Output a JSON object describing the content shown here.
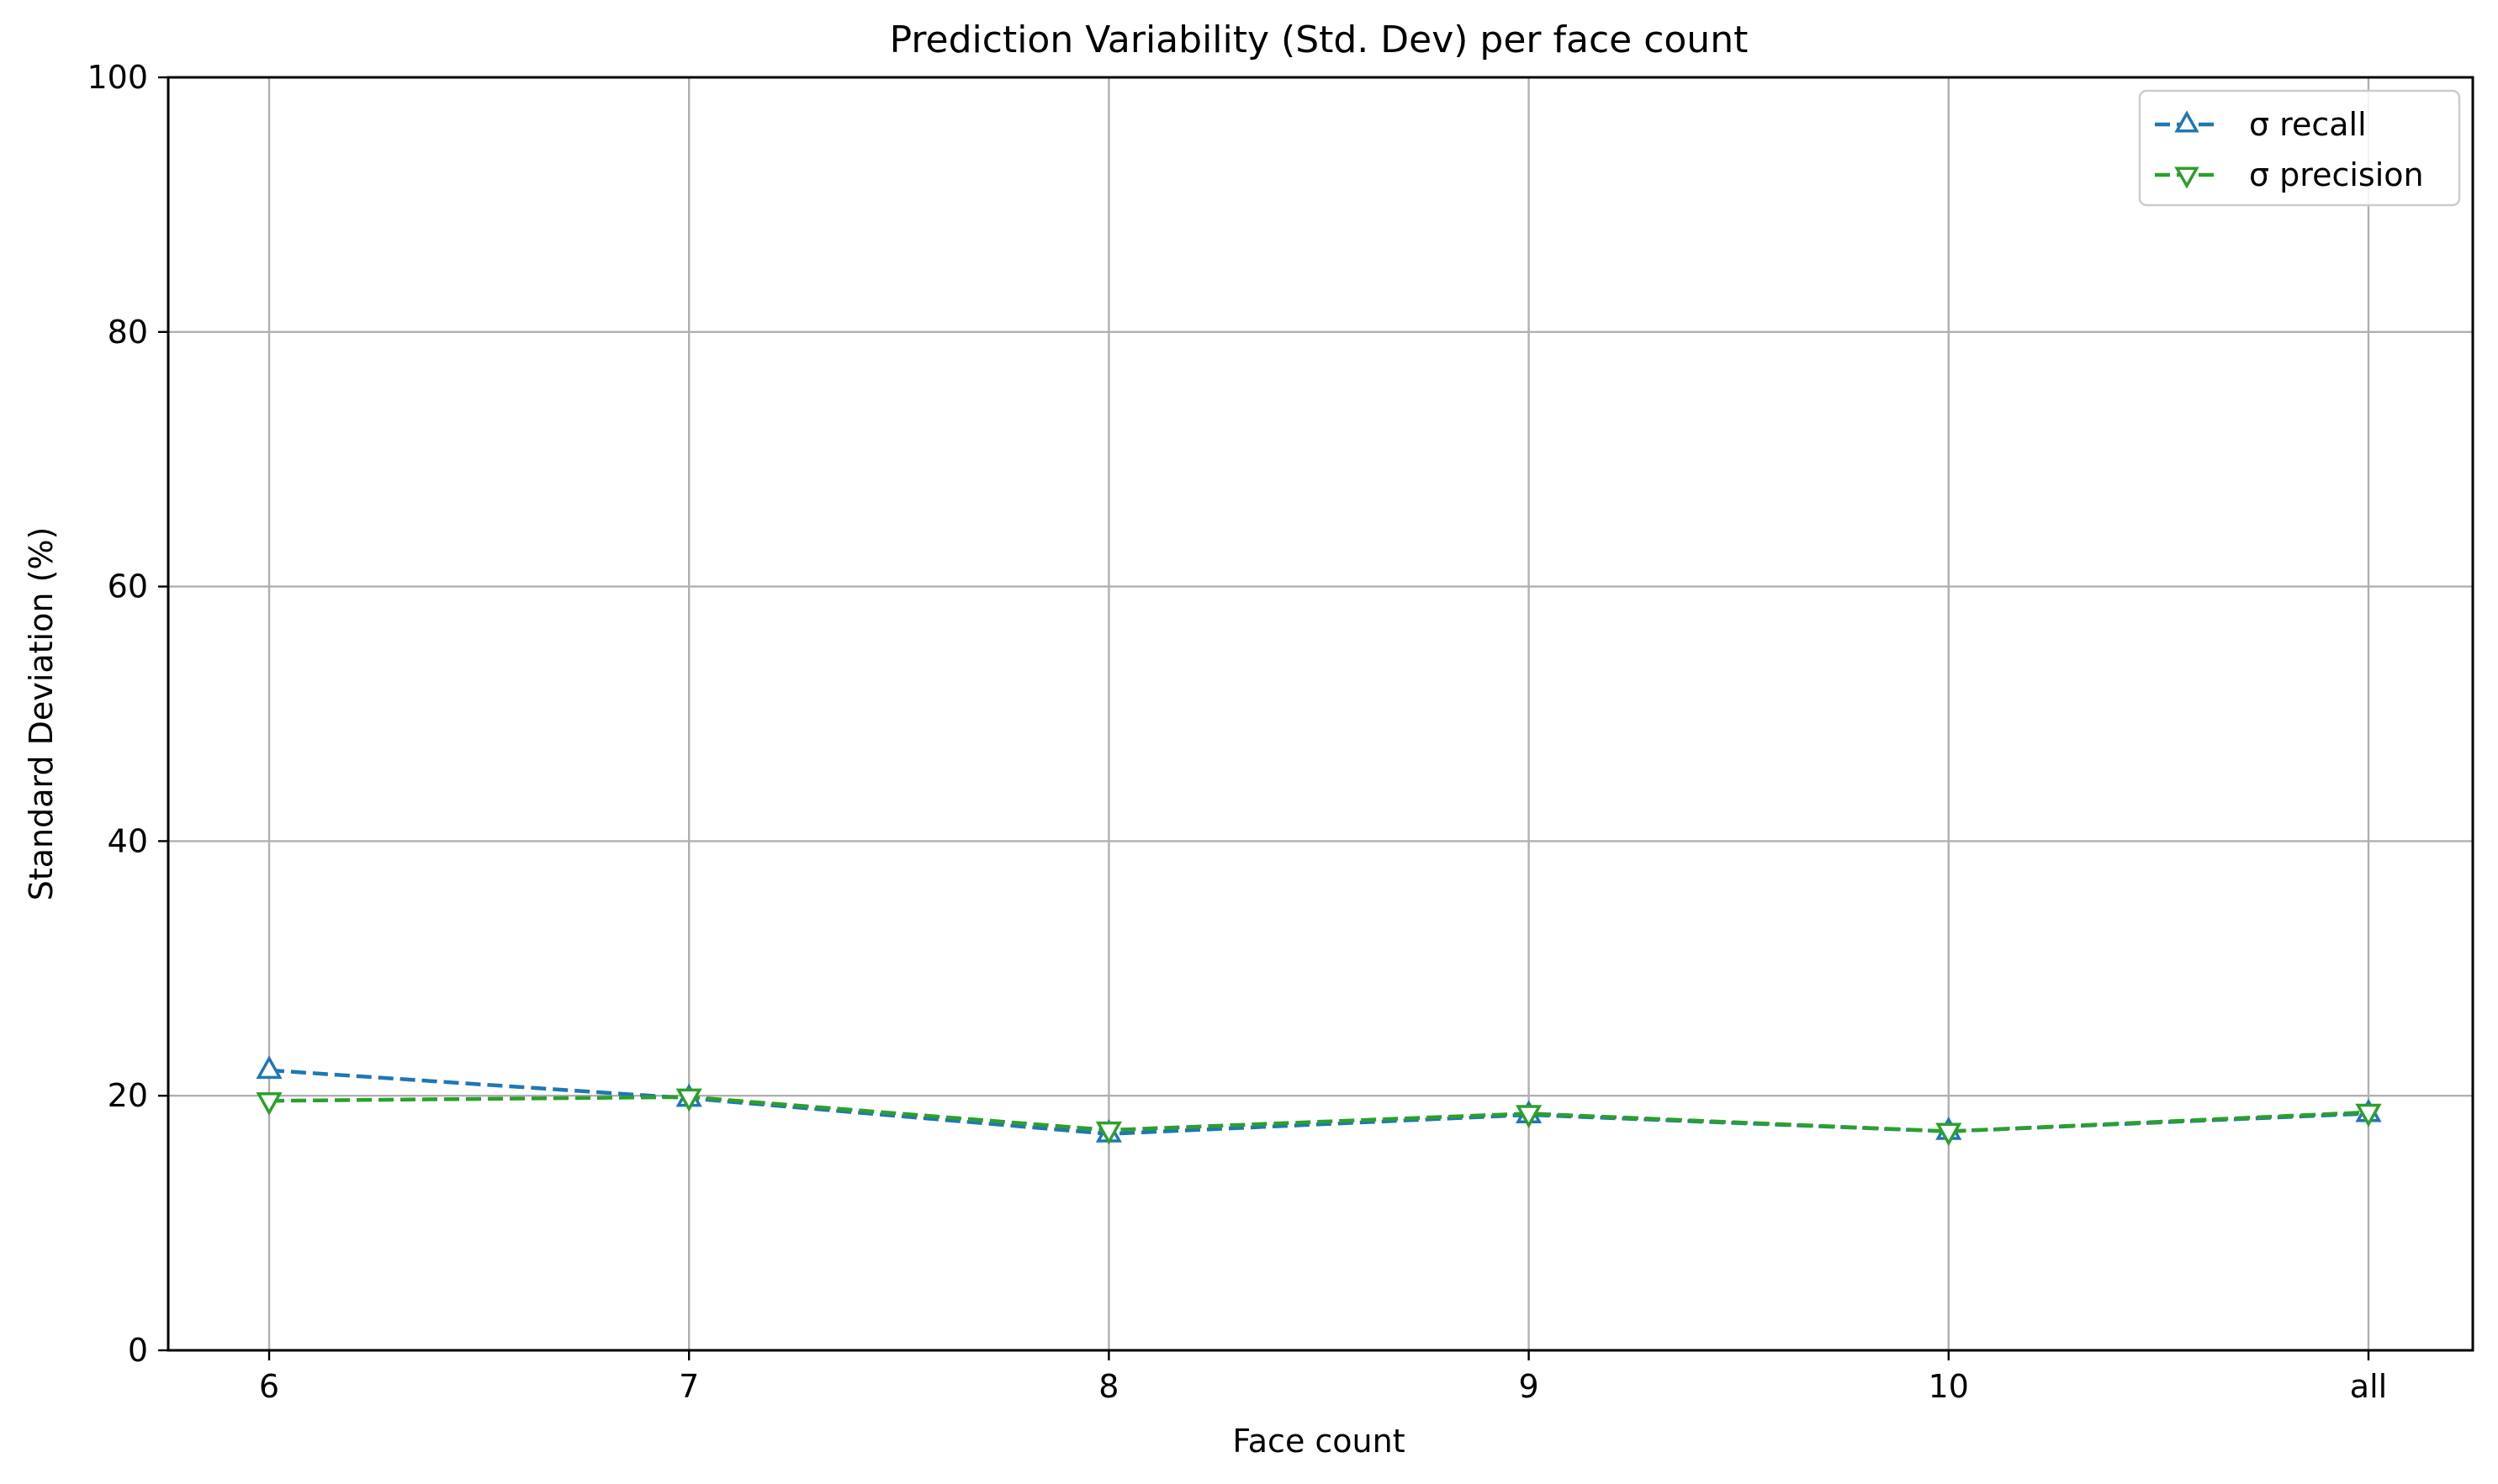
{
  "chart_data": {
    "type": "line",
    "title": "Prediction Variability (Std. Dev) per face count",
    "xlabel": "Face count",
    "ylabel": "Standard Deviation (%)",
    "categories": [
      "6",
      "7",
      "8",
      "9",
      "10",
      "all"
    ],
    "ylim": [
      0,
      100
    ],
    "yticks": [
      0,
      20,
      40,
      60,
      80,
      100
    ],
    "grid": true,
    "legend_position": "top-right",
    "series": [
      {
        "name": "σ recall",
        "values": [
          22.0,
          19.8,
          17.0,
          18.5,
          17.2,
          18.6
        ],
        "color": "#1f77b4",
        "marker": "triangle-up",
        "line_style": "dashed"
      },
      {
        "name": "σ precision",
        "values": [
          19.6,
          19.9,
          17.3,
          18.6,
          17.2,
          18.7
        ],
        "color": "#2ca02c",
        "marker": "triangle-down",
        "line_style": "dashed"
      }
    ]
  }
}
